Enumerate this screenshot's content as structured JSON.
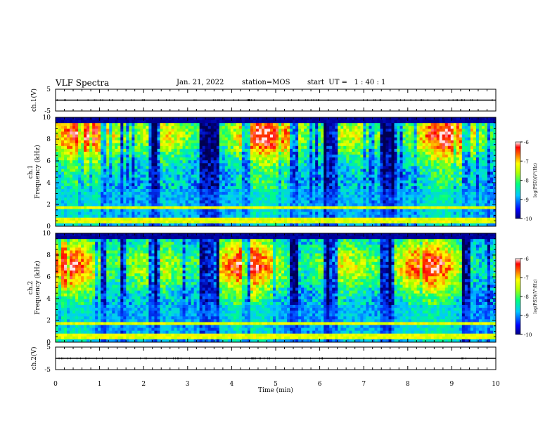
{
  "header": {
    "title": "VLF Spectra",
    "date": "Jan. 21, 2022",
    "station": "station=MOS",
    "start_time": "start  UT =   1 : 40 : 1"
  },
  "chart_data": [
    {
      "type": "line",
      "ylabel": "ch.1(V)",
      "ylim": [
        -5,
        5
      ],
      "yticks": [
        "5",
        "-5"
      ],
      "x": [
        0,
        10
      ],
      "series": [
        {
          "values": [
            0,
            0
          ]
        }
      ]
    },
    {
      "type": "heatmap",
      "ylabel_lines": [
        "ch.1",
        "Frequency (kHz)"
      ],
      "ylim": [
        0,
        10
      ],
      "yticks": [
        "0",
        "2",
        "4",
        "6",
        "8",
        "10"
      ],
      "xlim": [
        0,
        10
      ],
      "colorbar": {
        "label": "log(PSD)(V²/Hz)",
        "range": [
          -10,
          -6
        ],
        "ticks": [
          "-6",
          "-7",
          "-8",
          "-9",
          "-10"
        ]
      }
    },
    {
      "type": "heatmap",
      "ylabel_lines": [
        "ch.2",
        "Frequency (kHz)"
      ],
      "ylim": [
        0,
        10
      ],
      "yticks": [
        "0",
        "2",
        "4",
        "6",
        "8",
        "10"
      ],
      "xlim": [
        0,
        10
      ],
      "colorbar": {
        "label": "log(PSD)(V²/Hz)",
        "range": [
          -10,
          -6
        ],
        "ticks": [
          "-6",
          "-7",
          "-8",
          "-9",
          "-10"
        ]
      }
    },
    {
      "type": "line",
      "ylabel": "ch.2(V)",
      "ylim": [
        -5,
        5
      ],
      "yticks": [
        "5",
        "-5"
      ],
      "x": [
        0,
        10
      ],
      "series": [
        {
          "values": [
            0,
            0
          ]
        }
      ]
    }
  ],
  "xaxis": {
    "label": "Time (min)",
    "range": [
      0,
      10
    ],
    "ticks": [
      "0",
      "1",
      "2",
      "3",
      "4",
      "5",
      "6",
      "7",
      "8",
      "9",
      "10"
    ]
  }
}
